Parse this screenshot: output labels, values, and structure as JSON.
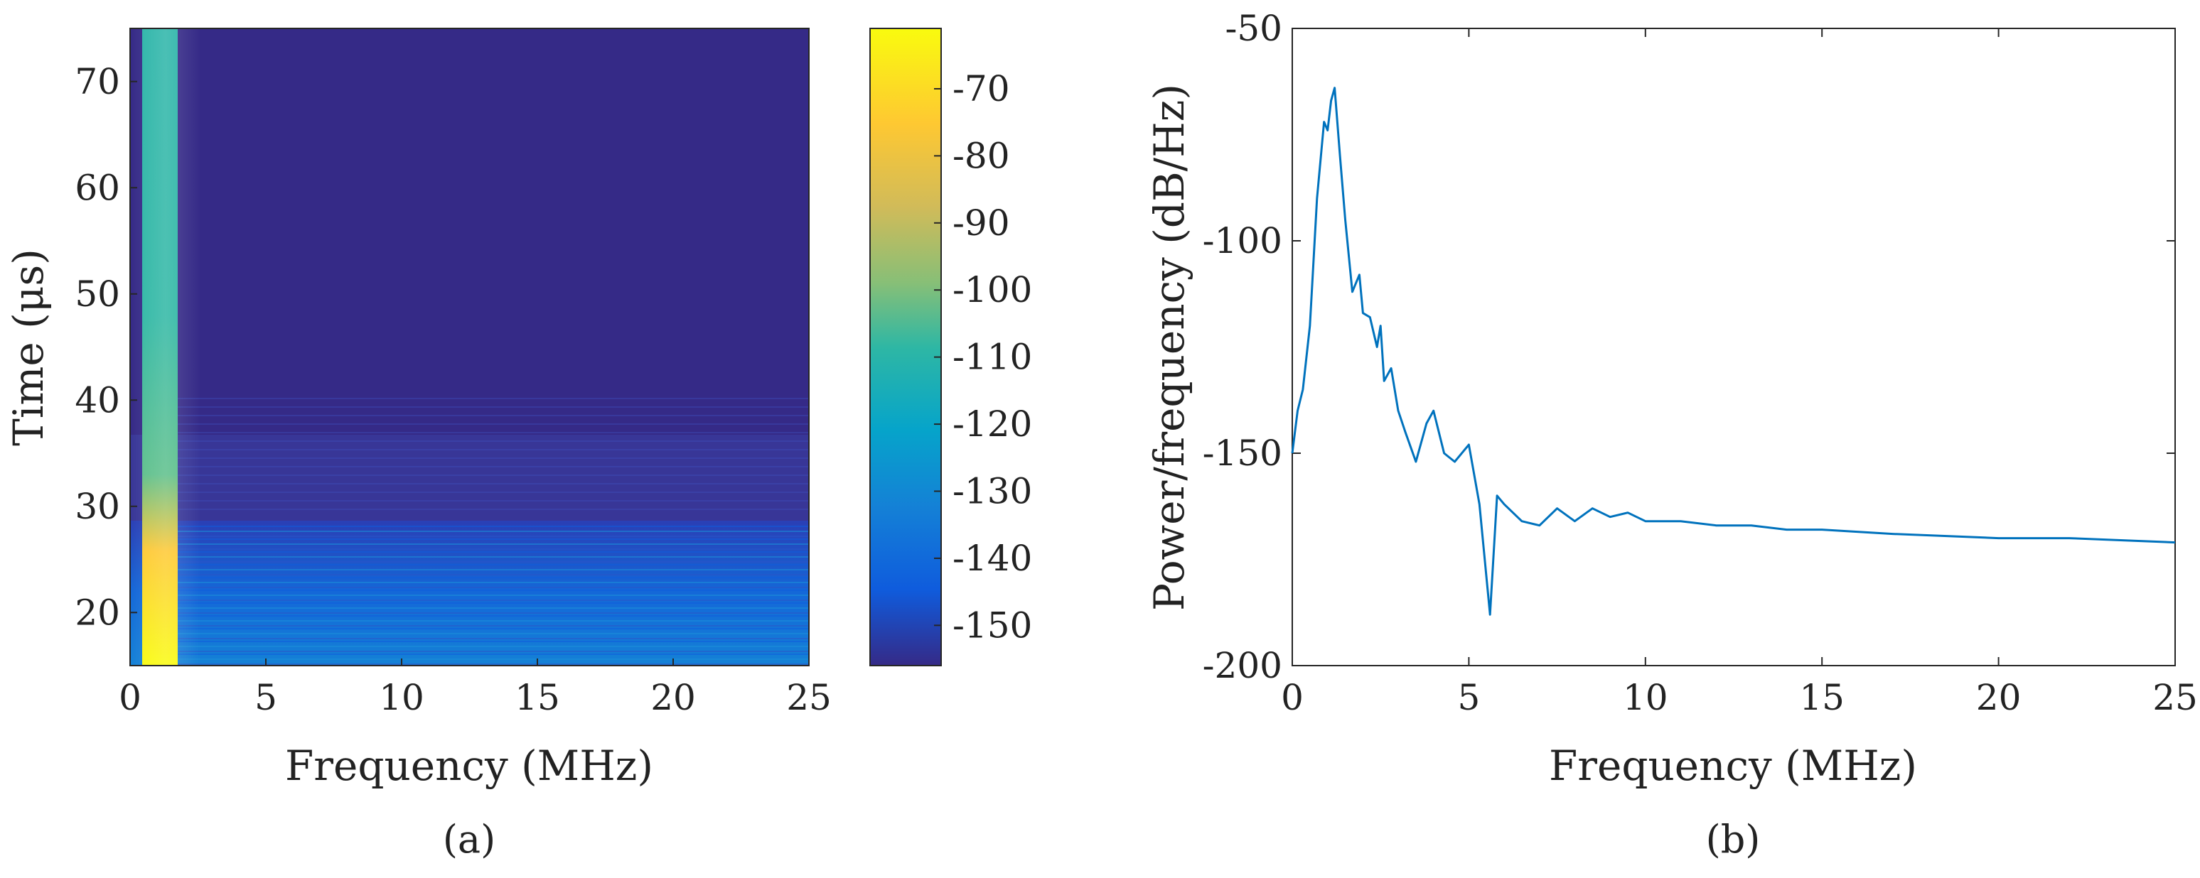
{
  "chart_data": [
    {
      "type": "heatmap",
      "panel_label": "(a)",
      "xlabel": "Frequency (MHz)",
      "ylabel": "Time (μs)",
      "xlim": [
        0,
        25
      ],
      "ylim": [
        15,
        75
      ],
      "x_ticks": [
        0,
        5,
        10,
        15,
        20,
        25
      ],
      "y_ticks": [
        20,
        30,
        40,
        50,
        60,
        70
      ],
      "colorbar": {
        "range": [
          -156,
          -61
        ],
        "ticks": [
          -70,
          -80,
          -90,
          -100,
          -110,
          -120,
          -130,
          -140,
          -150
        ],
        "colormap": "parula"
      },
      "features": [
        {
          "x": 1.1,
          "y": [
            15,
            28
          ],
          "value": -62
        },
        {
          "x": 1.1,
          "y": [
            28,
            75
          ],
          "value": -105
        },
        {
          "x": [
            2,
            25
          ],
          "y": [
            15,
            29
          ],
          "value": -136
        },
        {
          "x": [
            2,
            25
          ],
          "y": [
            29,
            75
          ],
          "value": -150
        }
      ]
    },
    {
      "type": "line",
      "panel_label": "(b)",
      "xlabel": "Frequency (MHz)",
      "ylabel": "Power/frequency (dB/Hz)",
      "xlim": [
        0,
        25
      ],
      "ylim": [
        -200,
        -50
      ],
      "x_ticks": [
        0,
        5,
        10,
        15,
        20,
        25
      ],
      "y_ticks": [
        -50,
        -100,
        -150,
        -200
      ],
      "color": "#0072BD",
      "series": [
        {
          "x": [
            0,
            0.15,
            0.3,
            0.5,
            0.7,
            0.9,
            1.0,
            1.1,
            1.2,
            1.35,
            1.5,
            1.7,
            1.9,
            2.0,
            2.2,
            2.4,
            2.5,
            2.6,
            2.8,
            3.0,
            3.2,
            3.5,
            3.8,
            4.0,
            4.3,
            4.6,
            5.0,
            5.3,
            5.6,
            5.8,
            6.0,
            6.5,
            7.0,
            7.5,
            8.0,
            8.5,
            9.0,
            9.5,
            10,
            11,
            12,
            13,
            14,
            15,
            17,
            20,
            22,
            25
          ],
          "y": [
            -150,
            -140,
            -135,
            -120,
            -90,
            -72,
            -74,
            -67,
            -64,
            -80,
            -95,
            -112,
            -108,
            -117,
            -118,
            -125,
            -120,
            -133,
            -130,
            -140,
            -145,
            -152,
            -143,
            -140,
            -150,
            -152,
            -148,
            -162,
            -188,
            -160,
            -162,
            -166,
            -167,
            -163,
            -166,
            -163,
            -165,
            -164,
            -166,
            -166,
            -167,
            -167,
            -168,
            -168,
            -169,
            -170,
            -170,
            -171
          ]
        }
      ]
    }
  ]
}
